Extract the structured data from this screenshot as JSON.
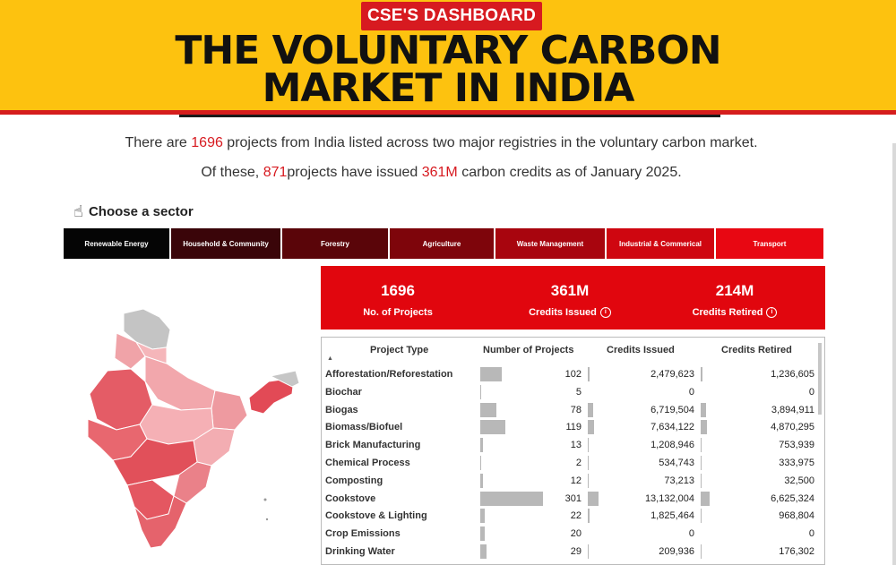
{
  "header": {
    "brand": "CSE'S DASHBOARD",
    "title_line1": "THE VOLUNTARY CARBON",
    "title_line2": "MARKET IN INDIA"
  },
  "intro": {
    "l1_pre": "There are ",
    "l1_count": "1696",
    "l1_post": " projects from India listed across two major registries in the voluntary carbon market.",
    "l2_pre": "Of  these, ",
    "l2_count": "871",
    "l2_mid": "projects have issued ",
    "l2_credits": "361M",
    "l2_post": " carbon credits as of January 2025."
  },
  "chooser": {
    "label": "Choose a sector"
  },
  "sectors": [
    {
      "label": "Renewable Energy",
      "color": "#050505"
    },
    {
      "label": "Household & Community",
      "color": "#3a0509"
    },
    {
      "label": "Forestry",
      "color": "#5a0509"
    },
    {
      "label": "Agriculture",
      "color": "#7e050b"
    },
    {
      "label": "Waste Management",
      "color": "#a8050e"
    },
    {
      "label": "Industrial & Commerical",
      "color": "#cf0610"
    },
    {
      "label": "Transport",
      "color": "#e80712"
    }
  ],
  "summary": {
    "projects_value": "1696",
    "projects_label": "No. of Projects",
    "issued_value": "361M",
    "issued_label": "Credits Issued",
    "retired_value": "214M",
    "retired_label": "Credits Retired",
    "info_glyph": "i"
  },
  "table": {
    "headers": [
      "Project Type",
      "Number of Projects",
      "Credits Issued",
      "Credits Retired"
    ],
    "max_projects": 301,
    "max_issued": 13132004,
    "max_retired": 6625324,
    "rows": [
      {
        "type": "Afforestation/Reforestation",
        "projects": "102",
        "p": 102,
        "issued": "2,479,623",
        "i": 2479623,
        "retired": "1,236,605",
        "r": 1236605
      },
      {
        "type": "Biochar",
        "projects": "5",
        "p": 5,
        "issued": "0",
        "i": 0,
        "retired": "0",
        "r": 0
      },
      {
        "type": "Biogas",
        "projects": "78",
        "p": 78,
        "issued": "6,719,504",
        "i": 6719504,
        "retired": "3,894,911",
        "r": 3894911
      },
      {
        "type": "Biomass/Biofuel",
        "projects": "119",
        "p": 119,
        "issued": "7,634,122",
        "i": 7634122,
        "retired": "4,870,295",
        "r": 4870295
      },
      {
        "type": "Brick Manufacturing",
        "projects": "13",
        "p": 13,
        "issued": "1,208,946",
        "i": 1208946,
        "retired": "753,939",
        "r": 753939
      },
      {
        "type": "Chemical Process",
        "projects": "2",
        "p": 2,
        "issued": "534,743",
        "i": 534743,
        "retired": "333,975",
        "r": 333975
      },
      {
        "type": "Composting",
        "projects": "12",
        "p": 12,
        "issued": "73,213",
        "i": 73213,
        "retired": "32,500",
        "r": 32500
      },
      {
        "type": "Cookstove",
        "projects": "301",
        "p": 301,
        "issued": "13,132,004",
        "i": 13132004,
        "retired": "6,625,324",
        "r": 6625324
      },
      {
        "type": "Cookstove & Lighting",
        "projects": "22",
        "p": 22,
        "issued": "1,825,464",
        "i": 1825464,
        "retired": "968,804",
        "r": 968804
      },
      {
        "type": "Crop Emissions",
        "projects": "20",
        "p": 20,
        "issued": "0",
        "i": 0,
        "retired": "0",
        "r": 0
      },
      {
        "type": "Drinking Water",
        "projects": "29",
        "p": 29,
        "issued": "209,936",
        "i": 209936,
        "retired": "176,302",
        "r": 176302
      }
    ]
  },
  "colors": {
    "banner": "#fdc20f",
    "accent": "#d71a20",
    "summary_bg": "#e1060e"
  }
}
